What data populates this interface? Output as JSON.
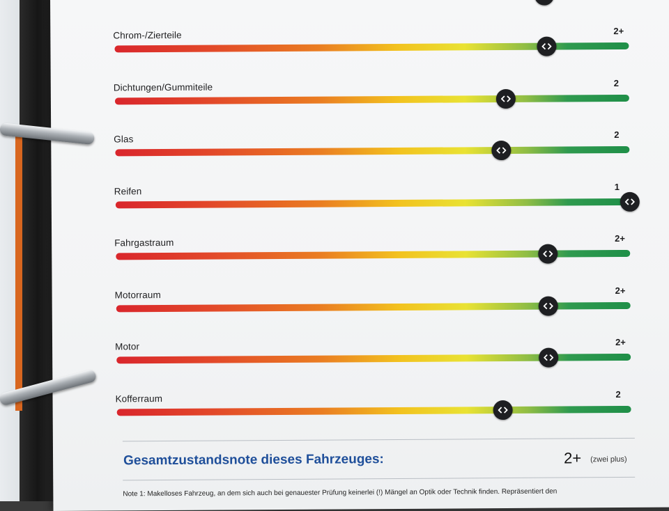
{
  "rows": [
    {
      "label": "Chrom-/Zierteile",
      "grade": "2+",
      "level": 0.84
    },
    {
      "label": "Dichtungen/Gummiteile",
      "grade": "2",
      "level": 0.76
    },
    {
      "label": "Glas",
      "grade": "2",
      "level": 0.75
    },
    {
      "label": "Reifen",
      "grade": "1",
      "level": 1.0
    },
    {
      "label": "Fahrgastraum",
      "grade": "2+",
      "level": 0.84
    },
    {
      "label": "Motorraum",
      "grade": "2+",
      "level": 0.84
    },
    {
      "label": "Motor",
      "grade": "2+",
      "level": 0.84
    },
    {
      "label": "Kofferraum",
      "grade": "2",
      "level": 0.75
    }
  ],
  "total": {
    "title": "Gesamtzustandsnote dieses Fahrzeuges:",
    "grade": "2+",
    "grade_words": "(zwei plus)"
  },
  "note": "Note 1: Makelloses Fahrzeug, an dem sich auch bei genauester Prüfung keinerlei (!) Mängel an Optik oder Technik finden. Repräsentiert den",
  "colors": {
    "title_blue": "#1f4f9a",
    "knob": "#1e1f22",
    "red": "#d9262c",
    "yellow": "#f2c21f",
    "green": "#1f8f48"
  },
  "icons": {
    "slider_knob": "chevron-left-right-icon",
    "binder_ring": "binder-ring"
  }
}
